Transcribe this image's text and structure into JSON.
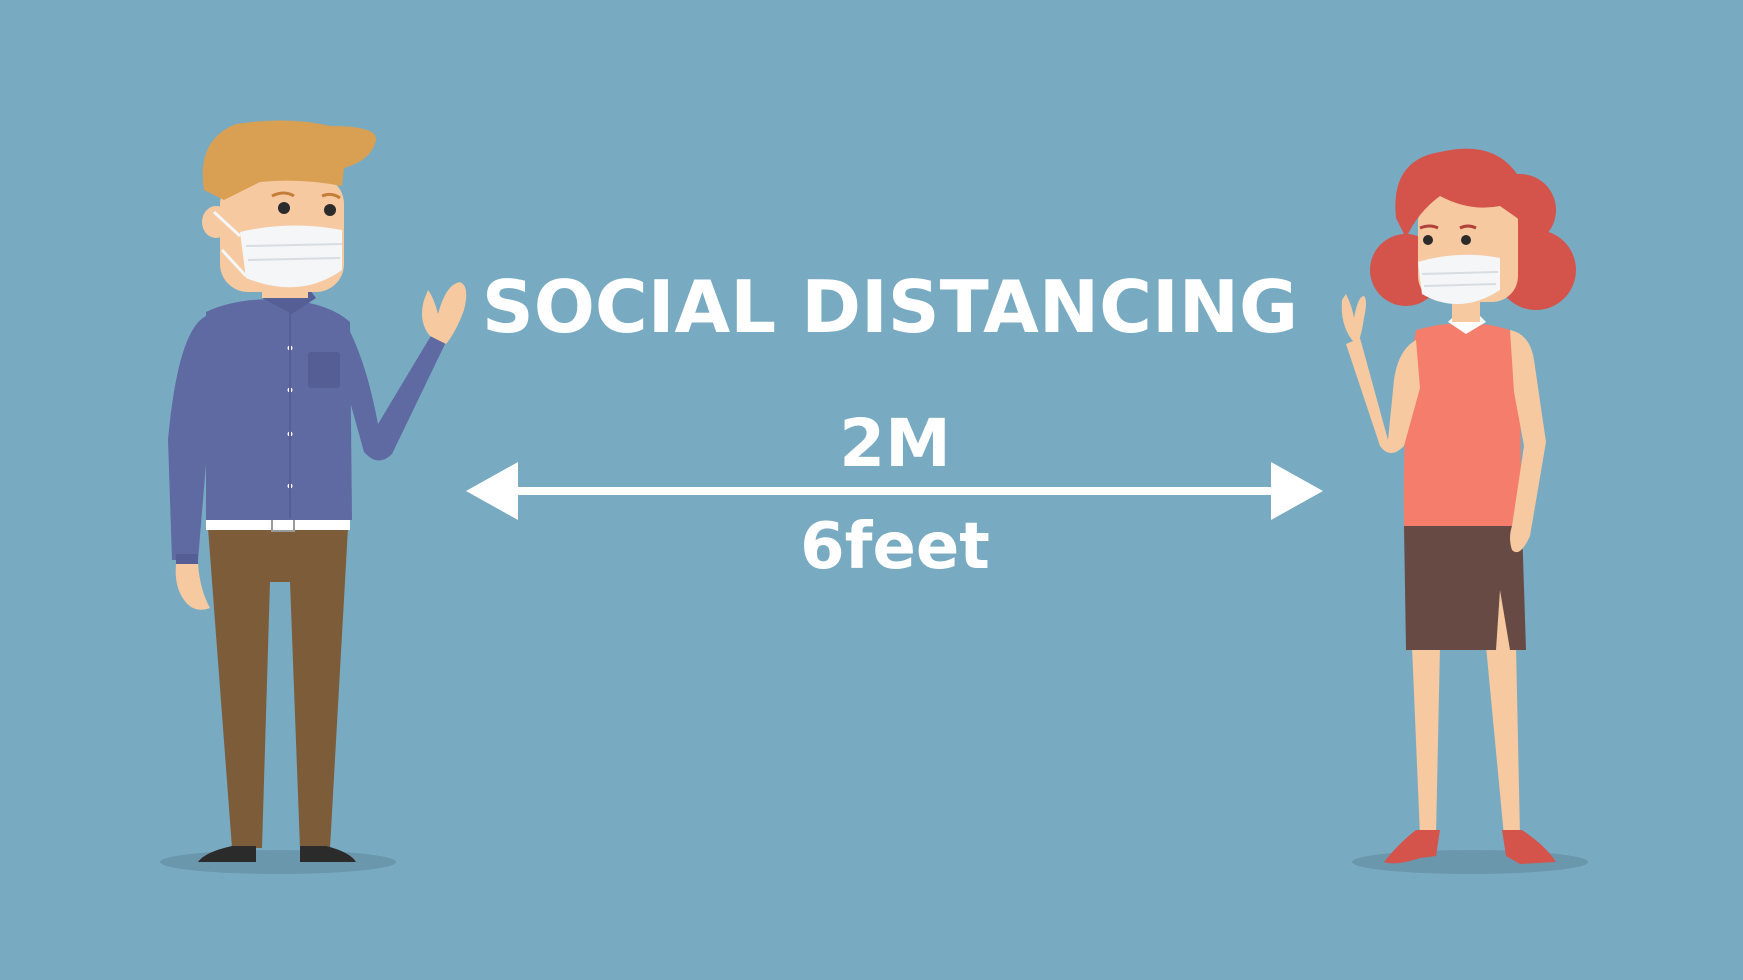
{
  "headline": "SOCIAL DISTANCING",
  "distance_metric": "2M",
  "distance_imperial": "6feet",
  "colors": {
    "background": "#78abc2",
    "text": "#ffffff",
    "man_hair": "#d99f52",
    "man_shirt": "#606aa2",
    "man_pants": "#7d5c3a",
    "woman_hair": "#d4534b",
    "woman_top": "#f47d6b",
    "woman_skirt": "#684a45",
    "skin": "#f6c9a0",
    "mask": "#f4f6f8"
  },
  "icons": [
    "double-arrow-icon",
    "man-figure",
    "woman-figure"
  ]
}
